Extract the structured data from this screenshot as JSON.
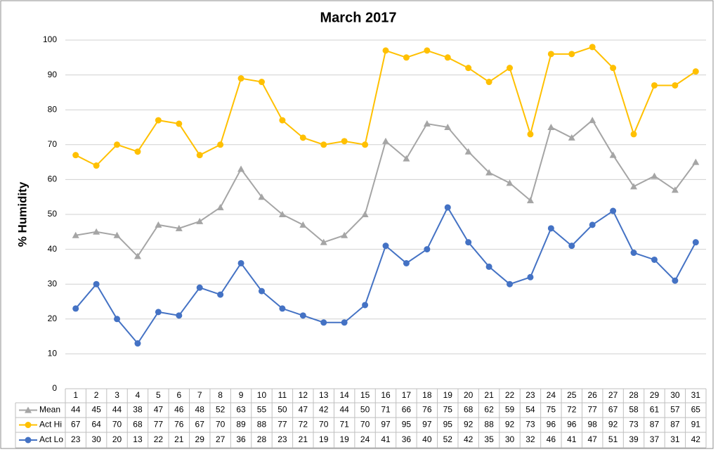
{
  "chart_data": {
    "type": "line",
    "title": "March 2017",
    "y_label": "% Humidity",
    "categories": [
      "1",
      "2",
      "3",
      "4",
      "5",
      "6",
      "7",
      "8",
      "9",
      "10",
      "11",
      "12",
      "13",
      "14",
      "15",
      "16",
      "17",
      "18",
      "19",
      "20",
      "21",
      "22",
      "23",
      "24",
      "25",
      "26",
      "27",
      "28",
      "29",
      "30",
      "31"
    ],
    "series": [
      {
        "name": "Mean",
        "color": "#a5a5a5",
        "marker": "triangle",
        "values": [
          44,
          45,
          44,
          38,
          47,
          46,
          48,
          52,
          63,
          55,
          50,
          47,
          42,
          44,
          50,
          71,
          66,
          76,
          75,
          68,
          62,
          59,
          54,
          75,
          72,
          77,
          67,
          58,
          61,
          57,
          65
        ]
      },
      {
        "name": "Act Hi",
        "color": "#ffc000",
        "marker": "circle",
        "values": [
          67,
          64,
          70,
          68,
          77,
          76,
          67,
          70,
          89,
          88,
          77,
          72,
          70,
          71,
          70,
          97,
          95,
          97,
          95,
          92,
          88,
          92,
          73,
          96,
          96,
          98,
          92,
          73,
          87,
          87,
          91
        ]
      },
      {
        "name": "Act Lo",
        "color": "#4472c4",
        "marker": "circle",
        "values": [
          23,
          30,
          20,
          13,
          22,
          21,
          29,
          27,
          36,
          28,
          23,
          21,
          19,
          19,
          24,
          41,
          36,
          40,
          52,
          42,
          35,
          30,
          32,
          46,
          41,
          47,
          51,
          39,
          37,
          31,
          42
        ]
      }
    ],
    "ylim": [
      0,
      100
    ],
    "yticks": [
      0,
      10,
      20,
      30,
      40,
      50,
      60,
      70,
      80,
      90,
      100
    ],
    "grid": true,
    "data_table": true
  }
}
